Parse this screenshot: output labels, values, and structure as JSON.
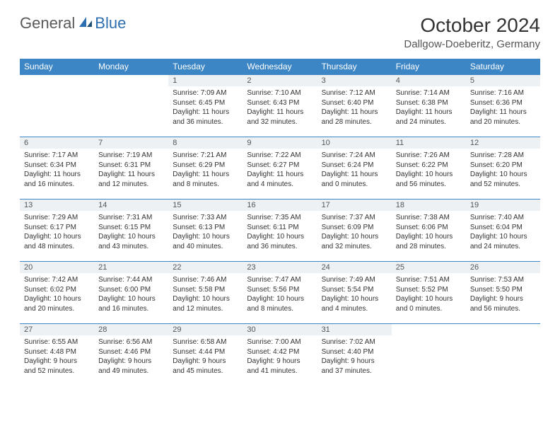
{
  "brand": {
    "part1": "General",
    "part2": "Blue"
  },
  "title": "October 2024",
  "location": "Dallgow-Doeberitz, Germany",
  "colors": {
    "header_bg": "#3d86c6",
    "header_text": "#ffffff",
    "cell_border": "#3d86c6",
    "daynum_bg": "#eef1f4",
    "body_text": "#333333",
    "brand_gray": "#5a5a5a",
    "brand_blue": "#2c6fb0"
  },
  "typography": {
    "title_fontsize": 28,
    "location_fontsize": 15,
    "dayhead_fontsize": 12,
    "daynum_fontsize": 11,
    "body_fontsize": 10
  },
  "day_names": [
    "Sunday",
    "Monday",
    "Tuesday",
    "Wednesday",
    "Thursday",
    "Friday",
    "Saturday"
  ],
  "weeks": [
    [
      {
        "n": "",
        "sr": "",
        "ss": "",
        "dl": "",
        "empty": true
      },
      {
        "n": "",
        "sr": "",
        "ss": "",
        "dl": "",
        "empty": true
      },
      {
        "n": "1",
        "sr": "Sunrise: 7:09 AM",
        "ss": "Sunset: 6:45 PM",
        "dl": "Daylight: 11 hours and 36 minutes."
      },
      {
        "n": "2",
        "sr": "Sunrise: 7:10 AM",
        "ss": "Sunset: 6:43 PM",
        "dl": "Daylight: 11 hours and 32 minutes."
      },
      {
        "n": "3",
        "sr": "Sunrise: 7:12 AM",
        "ss": "Sunset: 6:40 PM",
        "dl": "Daylight: 11 hours and 28 minutes."
      },
      {
        "n": "4",
        "sr": "Sunrise: 7:14 AM",
        "ss": "Sunset: 6:38 PM",
        "dl": "Daylight: 11 hours and 24 minutes."
      },
      {
        "n": "5",
        "sr": "Sunrise: 7:16 AM",
        "ss": "Sunset: 6:36 PM",
        "dl": "Daylight: 11 hours and 20 minutes."
      }
    ],
    [
      {
        "n": "6",
        "sr": "Sunrise: 7:17 AM",
        "ss": "Sunset: 6:34 PM",
        "dl": "Daylight: 11 hours and 16 minutes."
      },
      {
        "n": "7",
        "sr": "Sunrise: 7:19 AM",
        "ss": "Sunset: 6:31 PM",
        "dl": "Daylight: 11 hours and 12 minutes."
      },
      {
        "n": "8",
        "sr": "Sunrise: 7:21 AM",
        "ss": "Sunset: 6:29 PM",
        "dl": "Daylight: 11 hours and 8 minutes."
      },
      {
        "n": "9",
        "sr": "Sunrise: 7:22 AM",
        "ss": "Sunset: 6:27 PM",
        "dl": "Daylight: 11 hours and 4 minutes."
      },
      {
        "n": "10",
        "sr": "Sunrise: 7:24 AM",
        "ss": "Sunset: 6:24 PM",
        "dl": "Daylight: 11 hours and 0 minutes."
      },
      {
        "n": "11",
        "sr": "Sunrise: 7:26 AM",
        "ss": "Sunset: 6:22 PM",
        "dl": "Daylight: 10 hours and 56 minutes."
      },
      {
        "n": "12",
        "sr": "Sunrise: 7:28 AM",
        "ss": "Sunset: 6:20 PM",
        "dl": "Daylight: 10 hours and 52 minutes."
      }
    ],
    [
      {
        "n": "13",
        "sr": "Sunrise: 7:29 AM",
        "ss": "Sunset: 6:17 PM",
        "dl": "Daylight: 10 hours and 48 minutes."
      },
      {
        "n": "14",
        "sr": "Sunrise: 7:31 AM",
        "ss": "Sunset: 6:15 PM",
        "dl": "Daylight: 10 hours and 43 minutes."
      },
      {
        "n": "15",
        "sr": "Sunrise: 7:33 AM",
        "ss": "Sunset: 6:13 PM",
        "dl": "Daylight: 10 hours and 40 minutes."
      },
      {
        "n": "16",
        "sr": "Sunrise: 7:35 AM",
        "ss": "Sunset: 6:11 PM",
        "dl": "Daylight: 10 hours and 36 minutes."
      },
      {
        "n": "17",
        "sr": "Sunrise: 7:37 AM",
        "ss": "Sunset: 6:09 PM",
        "dl": "Daylight: 10 hours and 32 minutes."
      },
      {
        "n": "18",
        "sr": "Sunrise: 7:38 AM",
        "ss": "Sunset: 6:06 PM",
        "dl": "Daylight: 10 hours and 28 minutes."
      },
      {
        "n": "19",
        "sr": "Sunrise: 7:40 AM",
        "ss": "Sunset: 6:04 PM",
        "dl": "Daylight: 10 hours and 24 minutes."
      }
    ],
    [
      {
        "n": "20",
        "sr": "Sunrise: 7:42 AM",
        "ss": "Sunset: 6:02 PM",
        "dl": "Daylight: 10 hours and 20 minutes."
      },
      {
        "n": "21",
        "sr": "Sunrise: 7:44 AM",
        "ss": "Sunset: 6:00 PM",
        "dl": "Daylight: 10 hours and 16 minutes."
      },
      {
        "n": "22",
        "sr": "Sunrise: 7:46 AM",
        "ss": "Sunset: 5:58 PM",
        "dl": "Daylight: 10 hours and 12 minutes."
      },
      {
        "n": "23",
        "sr": "Sunrise: 7:47 AM",
        "ss": "Sunset: 5:56 PM",
        "dl": "Daylight: 10 hours and 8 minutes."
      },
      {
        "n": "24",
        "sr": "Sunrise: 7:49 AM",
        "ss": "Sunset: 5:54 PM",
        "dl": "Daylight: 10 hours and 4 minutes."
      },
      {
        "n": "25",
        "sr": "Sunrise: 7:51 AM",
        "ss": "Sunset: 5:52 PM",
        "dl": "Daylight: 10 hours and 0 minutes."
      },
      {
        "n": "26",
        "sr": "Sunrise: 7:53 AM",
        "ss": "Sunset: 5:50 PM",
        "dl": "Daylight: 9 hours and 56 minutes."
      }
    ],
    [
      {
        "n": "27",
        "sr": "Sunrise: 6:55 AM",
        "ss": "Sunset: 4:48 PM",
        "dl": "Daylight: 9 hours and 52 minutes."
      },
      {
        "n": "28",
        "sr": "Sunrise: 6:56 AM",
        "ss": "Sunset: 4:46 PM",
        "dl": "Daylight: 9 hours and 49 minutes."
      },
      {
        "n": "29",
        "sr": "Sunrise: 6:58 AM",
        "ss": "Sunset: 4:44 PM",
        "dl": "Daylight: 9 hours and 45 minutes."
      },
      {
        "n": "30",
        "sr": "Sunrise: 7:00 AM",
        "ss": "Sunset: 4:42 PM",
        "dl": "Daylight: 9 hours and 41 minutes."
      },
      {
        "n": "31",
        "sr": "Sunrise: 7:02 AM",
        "ss": "Sunset: 4:40 PM",
        "dl": "Daylight: 9 hours and 37 minutes."
      },
      {
        "n": "",
        "sr": "",
        "ss": "",
        "dl": "",
        "empty": true
      },
      {
        "n": "",
        "sr": "",
        "ss": "",
        "dl": "",
        "empty": true
      }
    ]
  ]
}
